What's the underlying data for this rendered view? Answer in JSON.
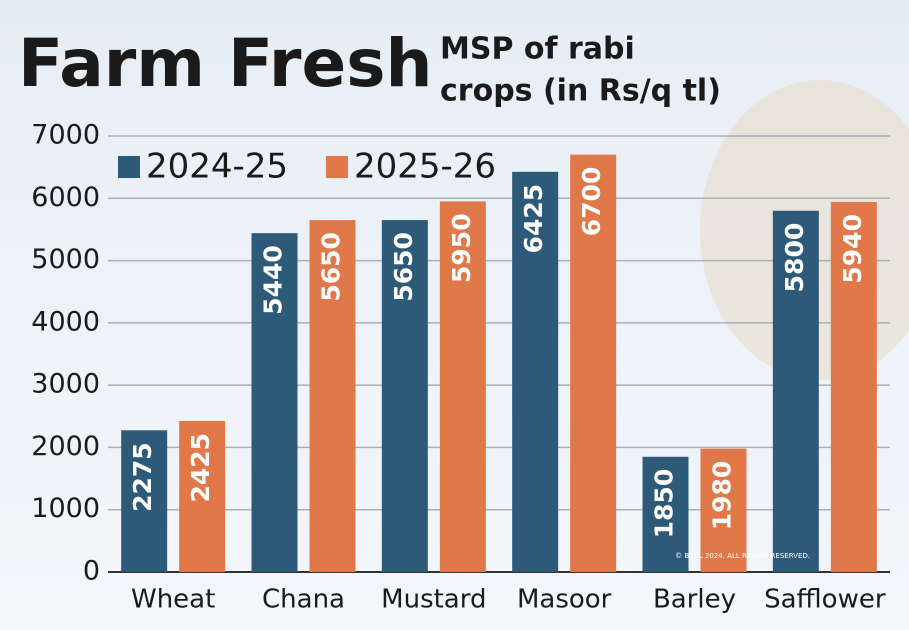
{
  "chart_data": {
    "type": "bar",
    "title": "Farm Fresh",
    "subtitle": [
      "MSP of rabi",
      "crops (in Rs/q tl)"
    ],
    "categories": [
      "Wheat",
      "Chana",
      "Mustard",
      "Masoor",
      "Barley",
      "Safflower"
    ],
    "series": [
      {
        "name": "2024-25",
        "color": "#2e5a7a",
        "values": [
          2275,
          5440,
          5650,
          6425,
          1850,
          5800
        ]
      },
      {
        "name": "2025-26",
        "color": "#e0784a",
        "values": [
          2425,
          5650,
          5950,
          6700,
          1980,
          5940
        ]
      }
    ],
    "ylim": [
      0,
      7000
    ],
    "yticks": [
      0,
      1000,
      2000,
      3000,
      4000,
      5000,
      6000,
      7000
    ],
    "grid": true,
    "credit": "© BCCL 2024. ALL RIGHTS RESERVED."
  }
}
